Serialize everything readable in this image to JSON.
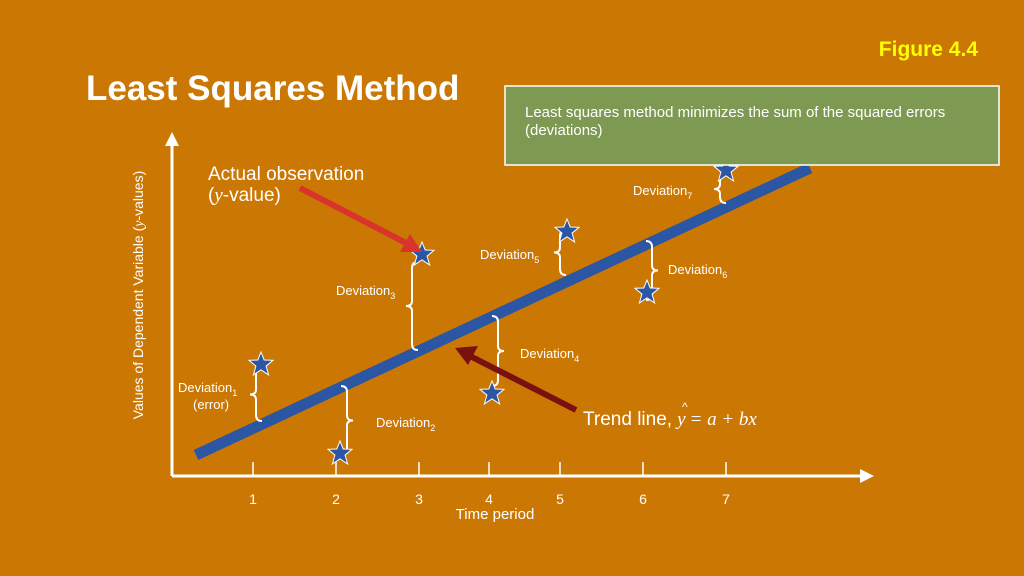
{
  "header": {
    "title": "Least Squares Method",
    "figure": "Figure 4.4"
  },
  "callout": {
    "text": "Least squares method minimizes the sum of the squared errors (deviations)"
  },
  "axes": {
    "y_label": {
      "before": "Values of Dependent Variable (",
      "var": "y",
      "after": "-values)"
    },
    "x_label": "Time period",
    "x_ticks": [
      "1",
      "2",
      "3",
      "4",
      "5",
      "6",
      "7"
    ]
  },
  "observation_label": {
    "line1": "Actual observation",
    "open": "(",
    "var": "y",
    "after": "-value)"
  },
  "trend_label": {
    "text": "Trend line,",
    "hat": "^",
    "var": "y",
    "equation": "= a + bx"
  },
  "deviations": [
    {
      "label": "Deviation",
      "sub": "1",
      "note": "(error)"
    },
    {
      "label": "Deviation",
      "sub": "2"
    },
    {
      "label": "Deviation",
      "sub": "3"
    },
    {
      "label": "Deviation",
      "sub": "4"
    },
    {
      "label": "Deviation",
      "sub": "5"
    },
    {
      "label": "Deviation",
      "sub": "6"
    },
    {
      "label": "Deviation",
      "sub": "7"
    }
  ]
}
